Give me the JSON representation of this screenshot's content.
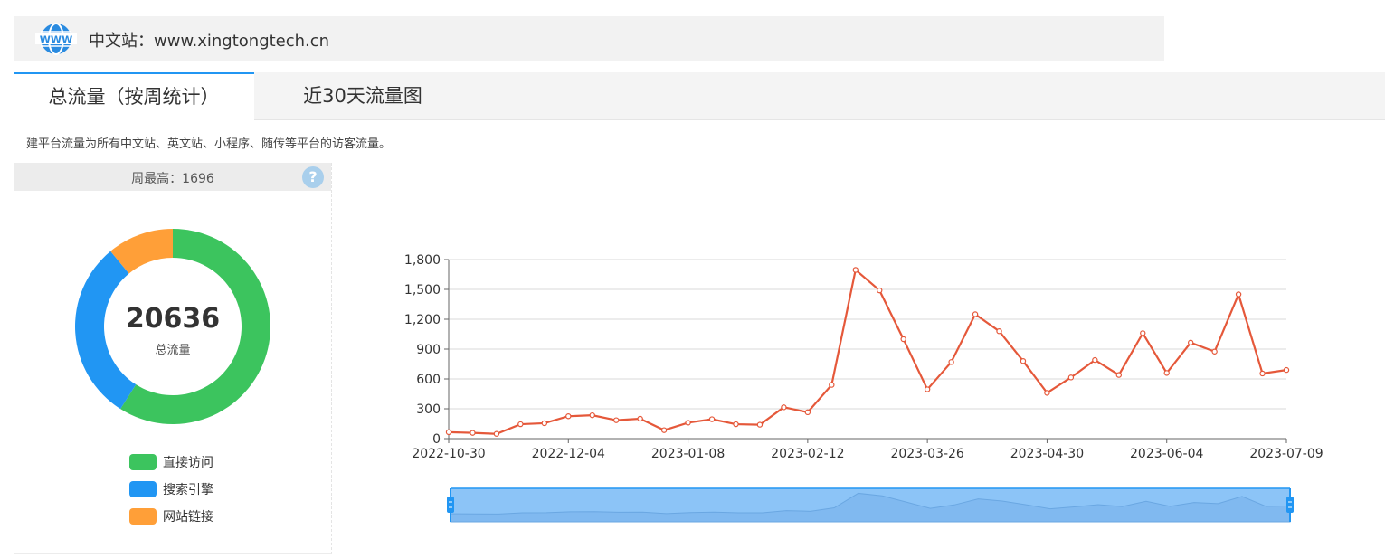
{
  "site": {
    "label": "中文站：www.xingtongtech.cn",
    "icon": "www-globe-icon",
    "icon_text": "WWW"
  },
  "tabs": [
    {
      "label": "总流量（按周统计）",
      "active": true
    },
    {
      "label": "近30天流量图",
      "active": false
    }
  ],
  "description": "建平台流量为所有中文站、英文站、小程序、随传等平台的访客流量。",
  "summary": {
    "peak_label": "周最高：1696",
    "help_icon": "question-icon",
    "help_glyph": "?",
    "total_value": "20636",
    "total_label": "总流量"
  },
  "donut": {
    "slices": [
      {
        "name": "直接访问",
        "value": 0.59,
        "color": "#3cc45e"
      },
      {
        "name": "搜索引擎",
        "value": 0.3,
        "color": "#2196f3"
      },
      {
        "name": "网站链接",
        "value": 0.11,
        "color": "#ff9f38"
      }
    ]
  },
  "colors": {
    "accent": "#2196f3",
    "line": "#e5583a",
    "zoom_fill": "#8cc4f7"
  },
  "chart_data": {
    "type": "line",
    "title": "",
    "xlabel": "",
    "ylabel": "",
    "ylim": [
      0,
      1800
    ],
    "yticks": [
      "0",
      "300",
      "600",
      "900",
      "1,200",
      "1,500",
      "1,800"
    ],
    "ytick_values": [
      0,
      300,
      600,
      900,
      1200,
      1500,
      1800
    ],
    "xtick_labels": [
      "2022-10-30",
      "2022-12-04",
      "2023-01-08",
      "2023-02-12",
      "2023-03-26",
      "2023-04-30",
      "2023-06-04",
      "2023-07-09"
    ],
    "xtick_index": [
      0,
      5,
      10,
      15,
      20,
      25,
      30,
      35
    ],
    "grid": true,
    "series": [
      {
        "values": [
          65,
          58,
          48,
          145,
          155,
          225,
          235,
          185,
          200,
          85,
          160,
          195,
          145,
          140,
          315,
          265,
          540,
          1696,
          1490,
          1000,
          495,
          770,
          1250,
          1080,
          780,
          460,
          615,
          790,
          640,
          1060,
          660,
          965,
          875,
          1450,
          655,
          690
        ]
      }
    ],
    "datazoom": {
      "start": 0,
      "end": 1
    }
  }
}
